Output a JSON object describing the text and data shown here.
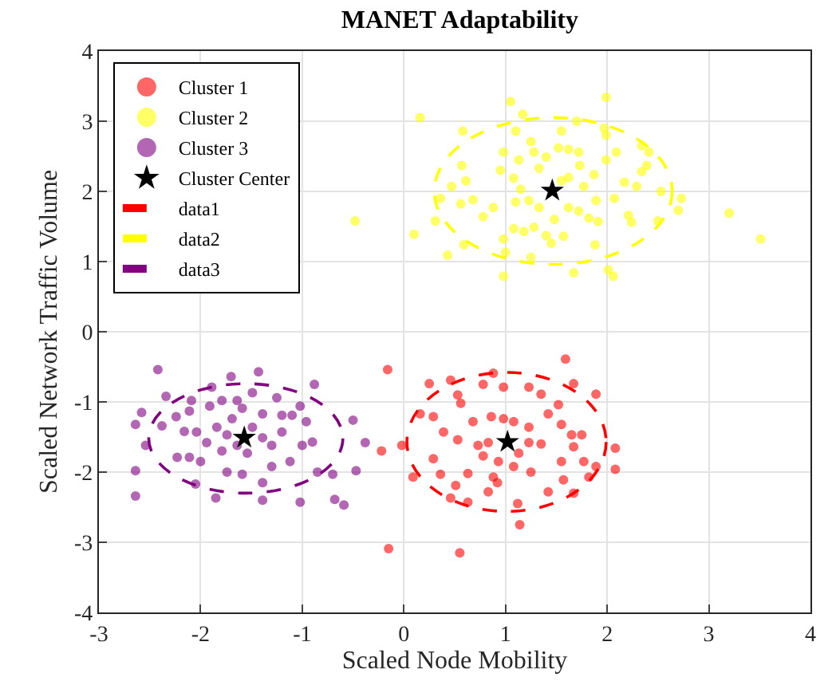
{
  "chart_data": {
    "type": "scatter",
    "title": "MANET Adaptability",
    "xlabel": "Scaled Node Mobility",
    "ylabel": "Scaled Network Traffic Volume",
    "xlim": [
      -3,
      4
    ],
    "ylim": [
      -4,
      4
    ],
    "xticks": [
      -3,
      -2,
      -1,
      0,
      1,
      2,
      3,
      4
    ],
    "yticks": [
      -4,
      -3,
      -2,
      -1,
      0,
      1,
      2,
      3,
      4
    ],
    "grid": true,
    "legend": "top left",
    "series": [
      {
        "name": "Cluster 1",
        "color": "#ff0000",
        "marker": "circle",
        "x": [
          -0.16,
          -0.22,
          -0.15,
          0.55,
          1.14,
          1.59,
          2.08,
          2.08,
          -0.02,
          0.09,
          0.25,
          0.46,
          0.88,
          0.78,
          0.98,
          1.23,
          1.35,
          1.67,
          1.89,
          0.53,
          0.16,
          0.29,
          0.56,
          0.68,
          0.86,
          0.98,
          1.08,
          1.23,
          1.42,
          1.52,
          1.55,
          1.65,
          1.75,
          0.39,
          0.53,
          0.73,
          0.83,
          1.13,
          1.23,
          1.35,
          1.67,
          0.29,
          0.78,
          0.93,
          1.08,
          1.25,
          1.55,
          1.77,
          1.89,
          0.36,
          0.63,
          0.88,
          1.57,
          1.82,
          0.51,
          0.83,
          1.42,
          1.67,
          0.46,
          0.63,
          1.12,
          0.92
        ],
        "values": [
          -0.54,
          -1.7,
          -3.09,
          -3.15,
          -2.75,
          -0.39,
          -1.66,
          -1.96,
          -1.62,
          -2.07,
          -0.74,
          -0.69,
          -0.59,
          -0.75,
          -0.79,
          -0.79,
          -0.89,
          -0.74,
          -0.89,
          -0.9,
          -1.17,
          -1.21,
          -1.02,
          -1.28,
          -1.21,
          -1.24,
          -1.28,
          -1.36,
          -1.17,
          -1.04,
          -1.32,
          -1.47,
          -1.47,
          -1.43,
          -1.54,
          -1.62,
          -1.58,
          -1.73,
          -1.58,
          -1.6,
          -1.64,
          -1.81,
          -1.77,
          -1.85,
          -1.92,
          -2.0,
          -1.85,
          -1.85,
          -1.92,
          -2.03,
          -2.02,
          -2.07,
          -2.11,
          -2.07,
          -2.19,
          -2.28,
          -2.28,
          -2.3,
          -2.37,
          -2.43,
          -2.45,
          -2.15
        ]
      },
      {
        "name": "Cluster 2",
        "color": "#ffff00",
        "marker": "circle",
        "x": [
          -0.48,
          0.16,
          0.1,
          0.43,
          1.05,
          1.99,
          3.2,
          3.51,
          0.98,
          1.67,
          2.06,
          2.01,
          0.58,
          1.17,
          1.1,
          1.55,
          1.7,
          1.97,
          1.99,
          2.34,
          2.41,
          2.39,
          2.34,
          2.17,
          2.29,
          2.53,
          2.73,
          2.7,
          2.21,
          2.24,
          2.5,
          1.88,
          0.57,
          0.61,
          0.47,
          0.36,
          0.56,
          0.68,
          0.78,
          0.88,
          0.31,
          0.59,
          0.98,
          1.0,
          1.25,
          1.45,
          1.57,
          1.18,
          1.08,
          1.28,
          1.4,
          1.48,
          1.62,
          1.72,
          1.82,
          1.91,
          1.89,
          2.07,
          1.77,
          1.87,
          1.99,
          2.09,
          1.72,
          1.62,
          1.52,
          1.4,
          1.28,
          1.33,
          1.13,
          0.98,
          0.95,
          1.08,
          1.15,
          1.1,
          1.23,
          1.33,
          1.62,
          1.73,
          1.25,
          1.55
        ],
        "values": [
          1.58,
          3.05,
          1.39,
          1.09,
          3.28,
          3.34,
          1.69,
          1.32,
          0.79,
          0.84,
          0.79,
          0.88,
          2.86,
          3.1,
          2.86,
          2.86,
          3.0,
          2.9,
          2.8,
          2.65,
          2.56,
          2.37,
          2.28,
          2.13,
          2.07,
          2.0,
          1.9,
          1.73,
          1.66,
          1.56,
          1.58,
          1.24,
          2.37,
          2.15,
          2.07,
          1.9,
          1.82,
          1.88,
          1.64,
          1.77,
          1.58,
          1.24,
          1.32,
          1.13,
          1.06,
          1.26,
          1.36,
          1.43,
          1.47,
          1.49,
          1.37,
          1.6,
          1.77,
          1.72,
          1.62,
          1.57,
          1.87,
          1.9,
          2.07,
          2.24,
          2.45,
          2.56,
          2.56,
          2.6,
          2.62,
          2.49,
          2.56,
          2.33,
          2.45,
          2.56,
          2.3,
          2.19,
          2.03,
          1.85,
          1.87,
          1.77,
          2.2,
          2.37,
          2.71,
          2.15
        ]
      },
      {
        "name": "Cluster 3",
        "color": "#800080",
        "marker": "circle",
        "x": [
          -2.42,
          -1.43,
          -1.7,
          -0.88,
          -2.34,
          -2.58,
          -2.64,
          -2.54,
          -2.64,
          -2.64,
          -0.5,
          -0.38,
          -0.47,
          -0.68,
          -0.59,
          -1.02,
          -1.39,
          -1.85,
          -2.05,
          -2.23,
          -2.11,
          -2.0,
          -1.74,
          -1.59,
          -1.39,
          -1.3,
          -1.12,
          -0.85,
          -0.7,
          -0.96,
          -1.02,
          -1.2,
          -1.1,
          -1.39,
          -1.64,
          -1.79,
          -1.91,
          -2.11,
          -2.24,
          -2.38,
          -2.16,
          -2.04,
          -1.94,
          -1.84,
          -1.74,
          -1.64,
          -1.49,
          -1.39,
          -1.3,
          -1.2,
          -1.0,
          -0.9,
          -1.54,
          -1.79,
          -1.89,
          -1.49,
          -1.69,
          -1.59,
          -2.09,
          -1.25
        ],
        "values": [
          -0.54,
          -0.57,
          -0.64,
          -0.75,
          -0.92,
          -1.15,
          -1.32,
          -1.62,
          -1.98,
          -2.34,
          -1.26,
          -1.58,
          -1.98,
          -2.39,
          -2.47,
          -2.43,
          -2.4,
          -2.37,
          -2.17,
          -1.79,
          -1.79,
          -1.85,
          -2.0,
          -2.03,
          -2.15,
          -1.92,
          -1.85,
          -2.0,
          -2.03,
          -1.28,
          -1.06,
          -1.19,
          -1.19,
          -1.17,
          -0.98,
          -0.98,
          -1.06,
          -1.13,
          -1.21,
          -1.34,
          -1.42,
          -1.43,
          -1.58,
          -1.36,
          -1.47,
          -1.62,
          -1.36,
          -1.51,
          -1.62,
          -1.43,
          -1.62,
          -1.57,
          -1.73,
          -1.7,
          -0.79,
          -0.87,
          -1.24,
          -1.09,
          -0.98,
          -0.94
        ]
      },
      {
        "name": "Cluster Center",
        "color": "#000000",
        "marker": "star",
        "x": [
          1.02,
          1.46,
          -1.57
        ],
        "values": [
          -1.57,
          2.01,
          -1.51
        ]
      },
      {
        "name": "data1",
        "type": "line",
        "color": "#ff0000",
        "line_style": "dashed"
      },
      {
        "name": "data2",
        "type": "line",
        "color": "#ffff00",
        "line_style": "dashed"
      },
      {
        "name": "data3",
        "type": "line",
        "color": "#800080",
        "line_style": "dashed"
      }
    ]
  }
}
